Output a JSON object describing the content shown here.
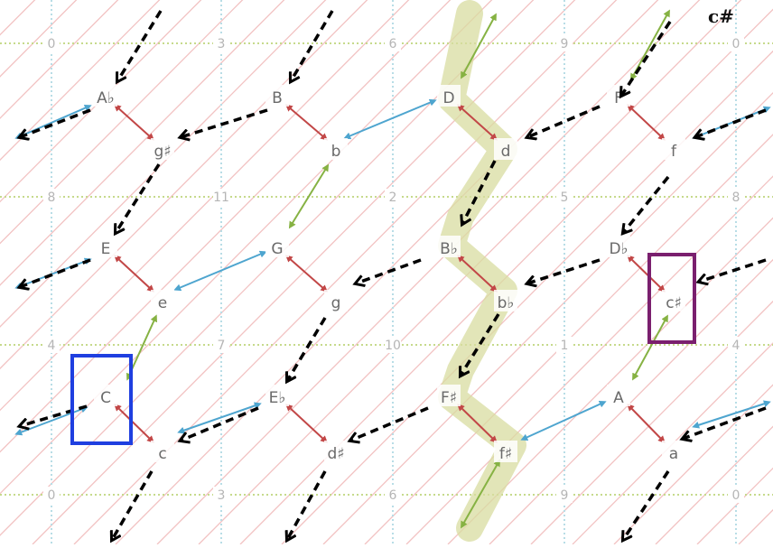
{
  "corner_label": "c#",
  "colors": {
    "grid": "#b8dde6",
    "diagonal": "#efb4b4",
    "red_arrow": "#c24747",
    "blue_arrow": "#4ea5cf",
    "green_arrow": "#86b243",
    "highlight": "#d8dca0",
    "black_arrow": "#000000",
    "blue_box": "#1f3fe0",
    "purple_box": "#7a1f6e"
  },
  "pitch_classes": [
    [
      "0",
      "3",
      "6",
      "9",
      "0"
    ],
    [
      "8",
      "11",
      "2",
      "5",
      "8"
    ],
    [
      "4",
      "7",
      "10",
      "1",
      "4"
    ],
    [
      "0",
      "3",
      "6",
      "9",
      "0"
    ]
  ],
  "major_chords": [
    [
      "A♭",
      "B",
      "D",
      "F"
    ],
    [
      "E",
      "G",
      "B♭",
      "D♭"
    ],
    [
      "C",
      "E♭",
      "F♯",
      "A"
    ]
  ],
  "minor_chords": [
    [
      "g♯",
      "b",
      "d",
      "f"
    ],
    [
      "e",
      "g",
      "b♭",
      "c♯"
    ],
    [
      "c",
      "d♯",
      "f♯",
      "a"
    ]
  ]
}
